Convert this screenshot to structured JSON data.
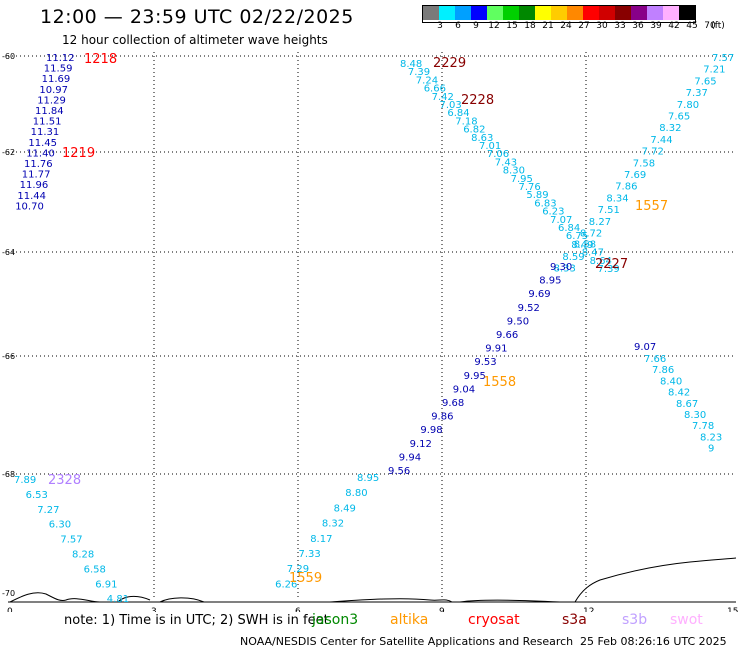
{
  "header": {
    "title": "12:00 — 23:59 UTC 02/22/2025",
    "subtitle": "12 hour collection of altimeter wave heights"
  },
  "legend": {
    "unit_label": "(ft)",
    "swatches": [
      {
        "color": "#7a7a7a",
        "label": "3"
      },
      {
        "color": "#00f0ff",
        "label": "6"
      },
      {
        "color": "#00a0ff",
        "label": "9"
      },
      {
        "color": "#0000ff",
        "label": "12"
      },
      {
        "color": "#60ff60",
        "label": "15"
      },
      {
        "color": "#00d000",
        "label": "18"
      },
      {
        "color": "#008800",
        "label": "21"
      },
      {
        "color": "#ffff00",
        "label": "24"
      },
      {
        "color": "#ffcc00",
        "label": "27"
      },
      {
        "color": "#ff8800",
        "label": "30"
      },
      {
        "color": "#ff0000",
        "label": "33"
      },
      {
        "color": "#d00000",
        "label": "36"
      },
      {
        "color": "#880000",
        "label": "39"
      },
      {
        "color": "#880088",
        "label": "42"
      },
      {
        "color": "#c080ff",
        "label": "45"
      },
      {
        "color": "#ffb0ff",
        "label": "70"
      },
      {
        "color": "#000000",
        "label": ""
      }
    ]
  },
  "axes": {
    "x_ticks": [
      "0",
      "3",
      "6",
      "9",
      "12",
      "15"
    ],
    "y_ticks": [
      "-60",
      "-62",
      "-64",
      "-66",
      "-68",
      "-70"
    ]
  },
  "colors": {
    "cyan": "#00b8e8",
    "navy": "#0000b0",
    "red": "#ff0000",
    "maroon": "#880000",
    "orange": "#ff9900",
    "violet": "#b080ff"
  },
  "tracks": [
    {
      "color": "navy",
      "values": [
        "11.12",
        "11.59",
        "11.69",
        "10.97",
        "11.29",
        "11.84",
        "11.51",
        "11.31",
        "11.45",
        "11.40",
        "11.76",
        "11.77",
        "11.96",
        "11.44",
        "10.70"
      ]
    },
    {
      "color": "cyan",
      "values": [
        "8.48",
        "7.39",
        "7.24",
        "6.66",
        "7.42",
        "7.03",
        "6.84",
        "7.18",
        "6.82",
        "8.63",
        "7.01",
        "7.06",
        "7.43",
        "8.30",
        "7.95",
        "7.76",
        "5.89",
        "6.83",
        "6.23",
        "7.07",
        "6.84",
        "6.75",
        "8.58",
        "8.47",
        "8.64",
        "7.39"
      ]
    },
    {
      "color": "navy",
      "values": [
        "9.07"
      ]
    },
    {
      "color": "cyan",
      "values": [
        "7.66",
        "7.86",
        "8.40",
        "8.42",
        "8.67",
        "8.30",
        "7.78",
        "8.23",
        "9"
      ]
    },
    {
      "color": "cyan",
      "values": [
        "7.57",
        "7.21",
        "7.65",
        "7.37",
        "7.80",
        "7.65",
        "8.32",
        "7.44",
        "7.72",
        "7.58",
        "7.69",
        "7.86",
        "8.34",
        "7.51",
        "8.27",
        "8.72",
        "8.49",
        "8.59",
        "8.33"
      ]
    },
    {
      "color": "navy",
      "values": [
        "9.30",
        "8.95",
        "9.69",
        "9.52",
        "9.50",
        "9.66",
        "9.91",
        "9.53",
        "9.95",
        "9.04",
        "9.68",
        "9.86",
        "9.98",
        "9.12",
        "9.94",
        "9.56"
      ]
    },
    {
      "color": "cyan",
      "values": [
        "8.95",
        "8.80",
        "8.49",
        "8.32",
        "8.17",
        "7.33",
        "7.29",
        "6.26"
      ]
    },
    {
      "color": "cyan",
      "values": [
        "7.89",
        "6.53",
        "7.27",
        "6.30",
        "7.57",
        "8.28",
        "6.58",
        "6.91",
        "4.81"
      ]
    }
  ],
  "labels": [
    {
      "text": "1218",
      "color": "red"
    },
    {
      "text": "1219",
      "color": "red"
    },
    {
      "text": "2229",
      "color": "maroon"
    },
    {
      "text": "2228",
      "color": "maroon"
    },
    {
      "text": "1557",
      "color": "orange"
    },
    {
      "text": "2227",
      "color": "maroon"
    },
    {
      "text": "1558",
      "color": "orange"
    },
    {
      "text": "2328",
      "color": "violet"
    },
    {
      "text": "1559",
      "color": "orange"
    }
  ],
  "footer": {
    "note": "note: 1) Time is in UTC; 2) SWH is in feet",
    "satellites": [
      {
        "name": "jason3",
        "color": "#008800"
      },
      {
        "name": "altika",
        "color": "#ff9900"
      },
      {
        "name": "cryosat",
        "color": "#ff0000"
      },
      {
        "name": "s3a",
        "color": "#880000"
      },
      {
        "name": "s3b",
        "color": "#c0a0ff"
      },
      {
        "name": "swot",
        "color": "#ffb0ff"
      }
    ],
    "credit": "NOAA/NESDIS Center for Satellite Applications and Research",
    "timestamp": "25 Feb 08:26:16 UTC 2025"
  }
}
